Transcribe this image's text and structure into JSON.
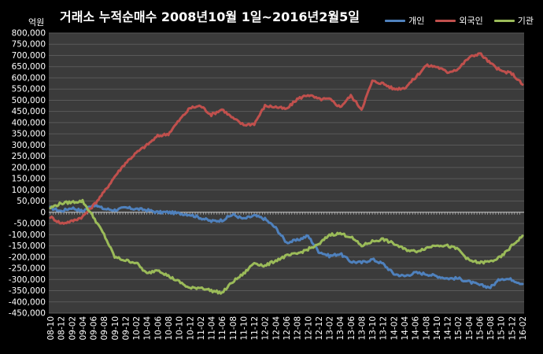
{
  "chart_data": {
    "type": "line",
    "title": "거래소 누적순매수 2008년10월 1일~2016년2월5일",
    "ylabel": "억원",
    "ylim": [
      -450000,
      800000
    ],
    "y_ticks": [
      800000,
      750000,
      700000,
      650000,
      600000,
      550000,
      500000,
      450000,
      400000,
      350000,
      300000,
      250000,
      200000,
      150000,
      100000,
      50000,
      0,
      -50000,
      -100000,
      -150000,
      -200000,
      -250000,
      -300000,
      -350000,
      -400000,
      -450000
    ],
    "y_tick_labels": [
      "800,000",
      "750,000",
      "700,000",
      "650,000",
      "600,000",
      "550,000",
      "500,000",
      "450,000",
      "400,000",
      "350,000",
      "300,000",
      "250,000",
      "200,000",
      "150,000",
      "100,000",
      "50,000",
      "0",
      "-50,000",
      "-100,000",
      "-150,000",
      "-200,000",
      "-250,000",
      "-300,000",
      "-350,000",
      "-400,000",
      "-450,000"
    ],
    "x_tick_labels": [
      "08-10",
      "08-12",
      "09-02",
      "09-04",
      "09-06",
      "09-08",
      "09-10",
      "09-12",
      "10-02",
      "10-04",
      "10-06",
      "10-08",
      "10-10",
      "10-12",
      "11-02",
      "11-04",
      "11-06",
      "11-08",
      "11-10",
      "11-12",
      "12-02",
      "12-04",
      "12-06",
      "12-08",
      "12-10",
      "12-12",
      "13-02",
      "13-04",
      "13-06",
      "13-08",
      "13-10",
      "13-12",
      "14-02",
      "14-04",
      "14-06",
      "14-08",
      "14-10",
      "14-12",
      "15-02",
      "15-04",
      "15-06",
      "15-08",
      "15-10",
      "15-12",
      "16-02"
    ],
    "legend_position": "top-right",
    "grid": true,
    "series": [
      {
        "name": "개인",
        "color": "#4f81bd",
        "values": [
          20000,
          5000,
          20000,
          5000,
          35000,
          15000,
          10000,
          20000,
          15000,
          10000,
          0,
          0,
          -5000,
          -10000,
          -25000,
          -40000,
          -35000,
          -10000,
          -30000,
          -15000,
          -30000,
          -70000,
          -135000,
          -125000,
          -105000,
          -175000,
          -195000,
          -185000,
          -220000,
          -225000,
          -210000,
          -230000,
          -275000,
          -285000,
          -270000,
          -275000,
          -285000,
          -295000,
          -295000,
          -310000,
          -325000,
          -335000,
          -295000,
          -300000,
          -320000
        ]
      },
      {
        "name": "외국인",
        "color": "#c0504d",
        "values": [
          -20000,
          -50000,
          -40000,
          -20000,
          30000,
          90000,
          160000,
          220000,
          265000,
          300000,
          340000,
          350000,
          410000,
          465000,
          475000,
          435000,
          460000,
          420000,
          390000,
          395000,
          475000,
          470000,
          460000,
          505000,
          525000,
          505000,
          505000,
          470000,
          520000,
          460000,
          585000,
          575000,
          550000,
          555000,
          600000,
          655000,
          650000,
          625000,
          640000,
          690000,
          710000,
          665000,
          630000,
          620000,
          570000
        ]
      },
      {
        "name": "기관",
        "color": "#9bbb59",
        "values": [
          20000,
          40000,
          45000,
          50000,
          -20000,
          -100000,
          -200000,
          -215000,
          -225000,
          -275000,
          -255000,
          -285000,
          -310000,
          -340000,
          -335000,
          -350000,
          -360000,
          -310000,
          -275000,
          -225000,
          -240000,
          -215000,
          -195000,
          -185000,
          -165000,
          -145000,
          -100000,
          -95000,
          -110000,
          -150000,
          -130000,
          -120000,
          -140000,
          -165000,
          -175000,
          -160000,
          -145000,
          -150000,
          -165000,
          -215000,
          -225000,
          -220000,
          -200000,
          -150000,
          -105000
        ]
      }
    ]
  }
}
